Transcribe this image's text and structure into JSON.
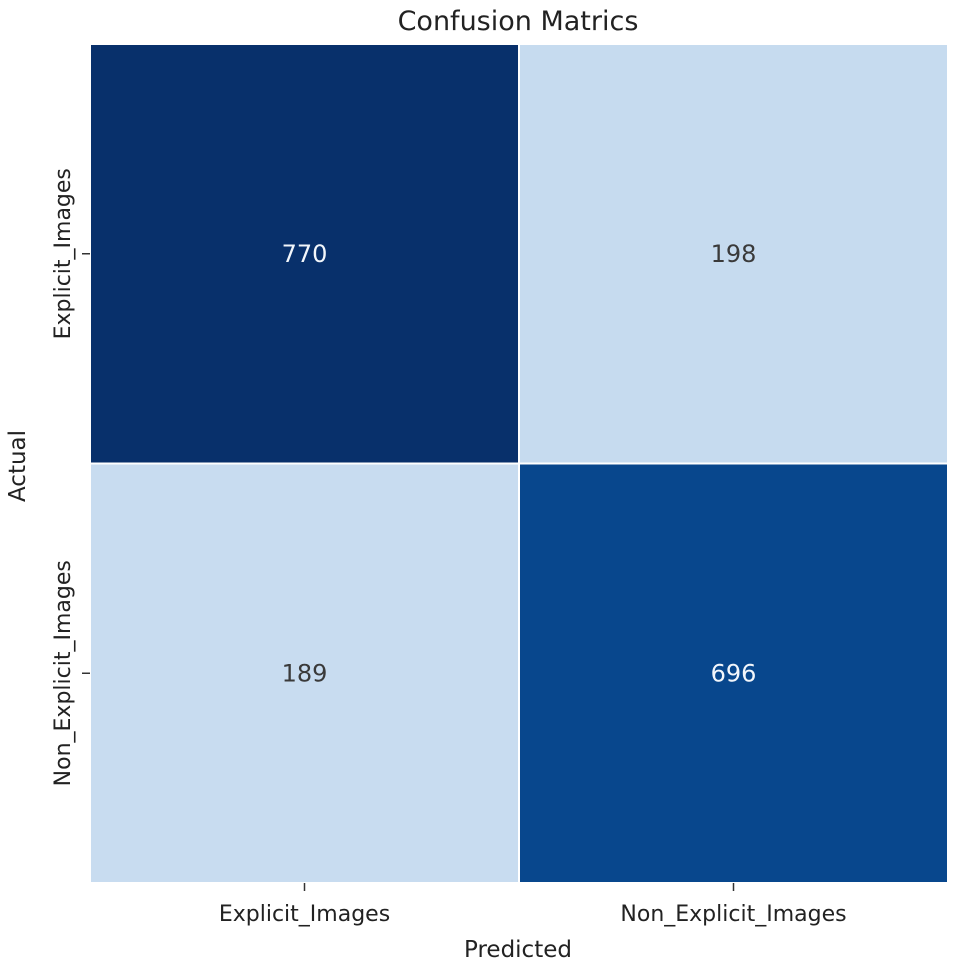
{
  "chart_data": {
    "type": "heatmap",
    "title": "Confusion Matrics",
    "xlabel": "Predicted",
    "ylabel": "Actual",
    "x_categories": [
      "Explicit_Images",
      "Non_Explicit_Images"
    ],
    "y_categories": [
      "Explicit_Images",
      "Non_Explicit_Images"
    ],
    "values": [
      [
        770,
        198
      ],
      [
        189,
        696
      ]
    ],
    "colormap": "Blues",
    "colorbar": false,
    "grid": false,
    "colors": {
      "770": "#08306b",
      "696": "#08478d",
      "198": "#c6dbef",
      "189": "#c8dcf0",
      "dark_text": "#f2f6fb",
      "light_text": "#3a3a3a",
      "cell_border": "#ffffff"
    }
  }
}
